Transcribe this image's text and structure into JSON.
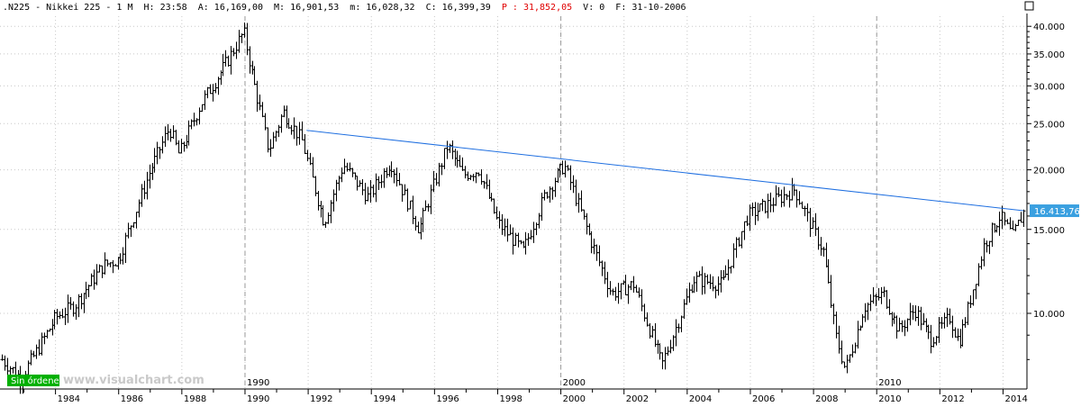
{
  "header": {
    "symbol": ".N225 - Nikkei 225 - 1 M",
    "time": "H: 23:58",
    "open": "A: 16,169,00",
    "high": "M: 16,901,53",
    "low": "m: 16,028,32",
    "close": "C: 16,399,39",
    "prev": "P : 31,852,05",
    "volume": "V: 0",
    "date": "F: 31-10-2006"
  },
  "status_badge": "Sin órdenes",
  "watermark": "www.visualchart.com",
  "last_price_label": "16.413,76",
  "colors": {
    "bars": "#000000",
    "trendline": "#1f6fe0",
    "badge": "#00b000",
    "price_tag": "#3aa0e0",
    "grid": "#c8c8c8"
  },
  "chart_data": {
    "type": "bar",
    "title": "",
    "scale": "log",
    "ylim": [
      7000,
      42000
    ],
    "xlim": [
      1982.3,
      2014.7
    ],
    "y_ticks": [
      10000,
      15000,
      20000,
      25000,
      30000,
      35000,
      40000
    ],
    "y_tick_labels": [
      "10.000",
      "15.000",
      "20.000",
      "25.000",
      "30.000",
      "35.000",
      "40.000"
    ],
    "x_ticks": [
      1984,
      1986,
      1988,
      1990,
      1992,
      1994,
      1996,
      1998,
      2000,
      2002,
      2004,
      2006,
      2008,
      2010,
      2012,
      2014
    ],
    "decade_markers": [
      1990,
      2000,
      2010
    ],
    "grid": true,
    "ohlc_anchors": [
      {
        "t": 1982.3,
        "close": 8000
      },
      {
        "t": 1982.9,
        "close": 7300
      },
      {
        "t": 1984.0,
        "close": 9800
      },
      {
        "t": 1984.6,
        "close": 10400
      },
      {
        "t": 1985.5,
        "close": 12600
      },
      {
        "t": 1986.0,
        "close": 13000
      },
      {
        "t": 1986.4,
        "close": 15500
      },
      {
        "t": 1987.0,
        "close": 20000
      },
      {
        "t": 1987.6,
        "close": 24500
      },
      {
        "t": 1987.9,
        "close": 21500
      },
      {
        "t": 1988.6,
        "close": 27500
      },
      {
        "t": 1989.4,
        "close": 33500
      },
      {
        "t": 1989.95,
        "close": 38900
      },
      {
        "t": 1990.3,
        "close": 30000
      },
      {
        "t": 1990.75,
        "close": 22000
      },
      {
        "t": 1991.2,
        "close": 26500
      },
      {
        "t": 1991.8,
        "close": 23000
      },
      {
        "t": 1992.5,
        "close": 15500
      },
      {
        "t": 1993.1,
        "close": 20500
      },
      {
        "t": 1993.9,
        "close": 17500
      },
      {
        "t": 1994.6,
        "close": 20800
      },
      {
        "t": 1995.5,
        "close": 15000
      },
      {
        "t": 1996.4,
        "close": 22500
      },
      {
        "t": 1996.9,
        "close": 19500
      },
      {
        "t": 1997.4,
        "close": 20000
      },
      {
        "t": 1998.0,
        "close": 15500
      },
      {
        "t": 1998.8,
        "close": 13500
      },
      {
        "t": 1999.5,
        "close": 17800
      },
      {
        "t": 2000.1,
        "close": 20500
      },
      {
        "t": 2000.9,
        "close": 14500
      },
      {
        "t": 2001.6,
        "close": 11000
      },
      {
        "t": 2002.3,
        "close": 11500
      },
      {
        "t": 2003.2,
        "close": 7800
      },
      {
        "t": 2004.2,
        "close": 11800
      },
      {
        "t": 2005.1,
        "close": 11500
      },
      {
        "t": 2005.9,
        "close": 16000
      },
      {
        "t": 2007.4,
        "close": 18200
      },
      {
        "t": 2008.3,
        "close": 13500
      },
      {
        "t": 2008.7,
        "close": 9000
      },
      {
        "t": 2009.0,
        "close": 7600
      },
      {
        "t": 2009.6,
        "close": 10300
      },
      {
        "t": 2010.2,
        "close": 11000
      },
      {
        "t": 2010.7,
        "close": 9200
      },
      {
        "t": 2011.2,
        "close": 10200
      },
      {
        "t": 2011.7,
        "close": 8800
      },
      {
        "t": 2012.3,
        "close": 9800
      },
      {
        "t": 2012.6,
        "close": 8700
      },
      {
        "t": 2012.9,
        "close": 10300
      },
      {
        "t": 2013.4,
        "close": 14000
      },
      {
        "t": 2013.9,
        "close": 16000
      },
      {
        "t": 2014.3,
        "close": 14500
      },
      {
        "t": 2014.65,
        "close": 16400
      }
    ],
    "trendline": {
      "start": {
        "t": 1991.95,
        "value": 24200
      },
      "end": {
        "t": 2014.65,
        "value": 16413.76
      }
    }
  }
}
